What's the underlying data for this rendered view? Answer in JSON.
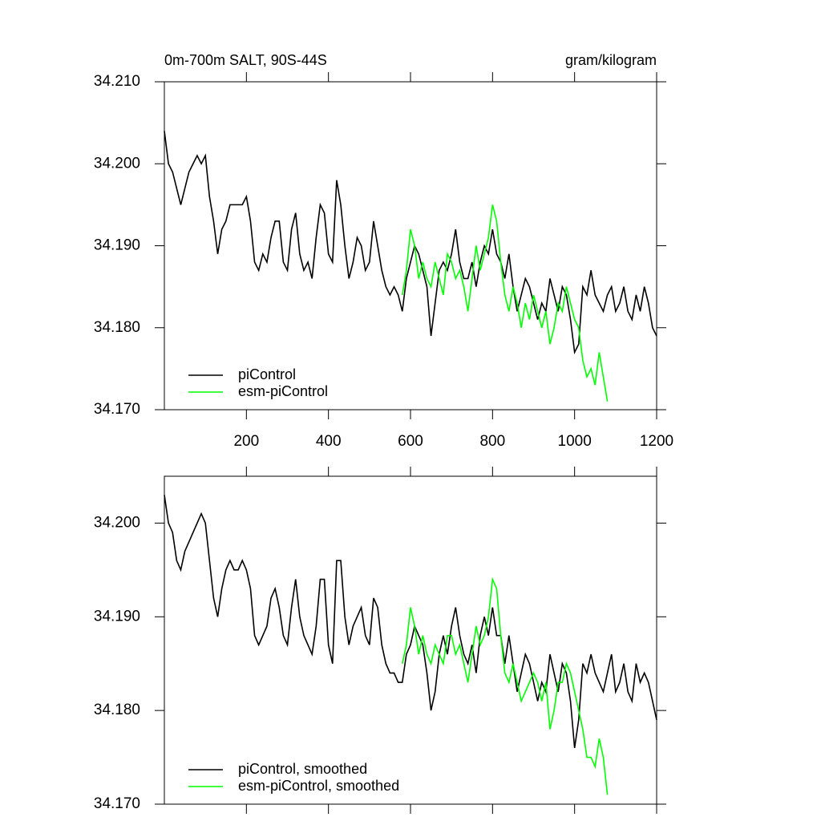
{
  "chart_data": [
    {
      "type": "line",
      "title": "0m-700m SALT, 90S-44S",
      "units": "gram/kilogram",
      "xlim": [
        0,
        1200
      ],
      "xticks": [
        200,
        400,
        600,
        800,
        1000,
        1200
      ],
      "ylim": [
        34.17,
        34.21
      ],
      "yticks": [
        {
          "value": 34.17,
          "label": "34.170"
        },
        {
          "value": 34.18,
          "label": "34.180"
        },
        {
          "value": 34.19,
          "label": "34.190"
        },
        {
          "value": 34.2,
          "label": "34.200"
        },
        {
          "value": 34.21,
          "label": "34.210"
        }
      ],
      "legend": "lower left",
      "series": [
        {
          "name": "piControl",
          "color": "#000000",
          "x": [
            0,
            10,
            20,
            30,
            40,
            50,
            60,
            70,
            80,
            90,
            100,
            110,
            120,
            130,
            140,
            150,
            160,
            170,
            180,
            190,
            200,
            210,
            220,
            230,
            240,
            250,
            260,
            270,
            280,
            290,
            300,
            310,
            320,
            330,
            340,
            350,
            360,
            370,
            380,
            390,
            400,
            410,
            420,
            430,
            440,
            450,
            460,
            470,
            480,
            490,
            500,
            510,
            520,
            530,
            540,
            550,
            560,
            570,
            580,
            590,
            600,
            610,
            620,
            630,
            640,
            650,
            660,
            670,
            680,
            690,
            700,
            710,
            720,
            730,
            740,
            750,
            760,
            770,
            780,
            790,
            800,
            810,
            820,
            830,
            840,
            850,
            860,
            870,
            880,
            890,
            900,
            910,
            920,
            930,
            940,
            950,
            960,
            970,
            980,
            990,
            1000,
            1010,
            1020,
            1030,
            1040,
            1050,
            1060,
            1070,
            1080,
            1090,
            1100,
            1110,
            1120,
            1130,
            1140,
            1150,
            1160,
            1170,
            1180,
            1190,
            1200
          ],
          "values": [
            34.204,
            34.2,
            34.199,
            34.197,
            34.195,
            34.197,
            34.199,
            34.2,
            34.201,
            34.2,
            34.201,
            34.196,
            34.193,
            34.189,
            34.192,
            34.193,
            34.195,
            34.195,
            34.195,
            34.195,
            34.196,
            34.193,
            34.188,
            34.187,
            34.189,
            34.188,
            34.191,
            34.193,
            34.193,
            34.188,
            34.187,
            34.192,
            34.194,
            34.189,
            34.187,
            34.188,
            34.186,
            34.191,
            34.195,
            34.194,
            34.189,
            34.188,
            34.198,
            34.195,
            34.19,
            34.186,
            34.188,
            34.191,
            34.19,
            34.187,
            34.188,
            34.193,
            34.19,
            34.187,
            34.185,
            34.184,
            34.185,
            34.184,
            34.182,
            34.186,
            34.188,
            34.19,
            34.189,
            34.187,
            34.185,
            34.179,
            34.183,
            34.187,
            34.188,
            34.187,
            34.189,
            34.192,
            34.188,
            34.186,
            34.186,
            34.188,
            34.185,
            34.188,
            34.19,
            34.189,
            34.192,
            34.189,
            34.188,
            34.186,
            34.189,
            34.185,
            34.182,
            34.184,
            34.186,
            34.185,
            34.183,
            34.181,
            34.183,
            34.182,
            34.186,
            34.184,
            34.182,
            34.185,
            34.184,
            34.181,
            34.177,
            34.178,
            34.185,
            34.184,
            34.187,
            34.184,
            34.183,
            34.182,
            34.184,
            34.185,
            34.182,
            34.183,
            34.185,
            34.182,
            34.181,
            34.184,
            34.182,
            34.185,
            34.183,
            34.18,
            34.179
          ]
        },
        {
          "name": "esm-piControl",
          "color": "#00ff00",
          "x": [
            580,
            590,
            600,
            610,
            620,
            630,
            640,
            650,
            660,
            670,
            680,
            690,
            700,
            710,
            720,
            730,
            740,
            750,
            760,
            770,
            780,
            790,
            800,
            810,
            820,
            830,
            840,
            850,
            860,
            870,
            880,
            890,
            900,
            910,
            920,
            930,
            940,
            950,
            960,
            970,
            980,
            990,
            1000,
            1010,
            1020,
            1030,
            1040,
            1050,
            1060,
            1070,
            1080
          ],
          "values": [
            34.184,
            34.187,
            34.192,
            34.19,
            34.186,
            34.188,
            34.186,
            34.185,
            34.188,
            34.186,
            34.184,
            34.189,
            34.188,
            34.186,
            34.187,
            34.185,
            34.182,
            34.186,
            34.19,
            34.187,
            34.189,
            34.191,
            34.195,
            34.193,
            34.188,
            34.184,
            34.182,
            34.185,
            34.183,
            34.18,
            34.183,
            34.181,
            34.184,
            34.182,
            34.18,
            34.182,
            34.178,
            34.18,
            34.183,
            34.182,
            34.185,
            34.183,
            34.181,
            34.18,
            34.176,
            34.174,
            34.175,
            34.173,
            34.177,
            34.174,
            34.171
          ]
        }
      ]
    },
    {
      "type": "line",
      "xlim": [
        0,
        1200
      ],
      "xticks": [
        200,
        400,
        600,
        800,
        1000,
        1200
      ],
      "ylim": [
        34.17,
        34.205
      ],
      "yticks": [
        {
          "value": 34.17,
          "label": "34.170"
        },
        {
          "value": 34.18,
          "label": "34.180"
        },
        {
          "value": 34.19,
          "label": "34.190"
        },
        {
          "value": 34.2,
          "label": "34.200"
        }
      ],
      "legend": "lower left",
      "series": [
        {
          "name": "piControl, smoothed",
          "color": "#000000",
          "x": [
            0,
            10,
            20,
            30,
            40,
            50,
            60,
            70,
            80,
            90,
            100,
            110,
            120,
            130,
            140,
            150,
            160,
            170,
            180,
            190,
            200,
            210,
            220,
            230,
            240,
            250,
            260,
            270,
            280,
            290,
            300,
            310,
            320,
            330,
            340,
            350,
            360,
            370,
            380,
            390,
            400,
            410,
            420,
            430,
            440,
            450,
            460,
            470,
            480,
            490,
            500,
            510,
            520,
            530,
            540,
            550,
            560,
            570,
            580,
            590,
            600,
            610,
            620,
            630,
            640,
            650,
            660,
            670,
            680,
            690,
            700,
            710,
            720,
            730,
            740,
            750,
            760,
            770,
            780,
            790,
            800,
            810,
            820,
            830,
            840,
            850,
            860,
            870,
            880,
            890,
            900,
            910,
            920,
            930,
            940,
            950,
            960,
            970,
            980,
            990,
            1000,
            1010,
            1020,
            1030,
            1040,
            1050,
            1060,
            1070,
            1080,
            1090,
            1100,
            1110,
            1120,
            1130,
            1140,
            1150,
            1160,
            1170,
            1180,
            1190,
            1200
          ],
          "values": [
            34.203,
            34.2,
            34.199,
            34.196,
            34.195,
            34.197,
            34.198,
            34.199,
            34.2,
            34.201,
            34.2,
            34.196,
            34.192,
            34.19,
            34.193,
            34.195,
            34.196,
            34.195,
            34.195,
            34.196,
            34.195,
            34.193,
            34.188,
            34.187,
            34.188,
            34.189,
            34.192,
            34.193,
            34.191,
            34.188,
            34.187,
            34.191,
            34.194,
            34.19,
            34.188,
            34.187,
            34.186,
            34.189,
            34.194,
            34.194,
            34.187,
            34.185,
            34.196,
            34.196,
            34.19,
            34.187,
            34.189,
            34.19,
            34.191,
            34.188,
            34.187,
            34.192,
            34.191,
            34.187,
            34.185,
            34.184,
            34.184,
            34.183,
            34.183,
            34.186,
            34.187,
            34.189,
            34.188,
            34.187,
            34.184,
            34.18,
            34.182,
            34.186,
            34.188,
            34.186,
            34.189,
            34.191,
            34.188,
            34.186,
            34.185,
            34.187,
            34.184,
            34.188,
            34.19,
            34.188,
            34.191,
            34.188,
            34.188,
            34.185,
            34.188,
            34.185,
            34.182,
            34.184,
            34.186,
            34.185,
            34.183,
            34.181,
            34.183,
            34.182,
            34.186,
            34.184,
            34.182,
            34.185,
            34.184,
            34.181,
            34.176,
            34.179,
            34.185,
            34.184,
            34.186,
            34.184,
            34.183,
            34.182,
            34.184,
            34.186,
            34.182,
            34.183,
            34.185,
            34.182,
            34.181,
            34.185,
            34.183,
            34.184,
            34.183,
            34.181,
            34.179
          ]
        },
        {
          "name": "esm-piControl, smoothed",
          "color": "#00ff00",
          "x": [
            580,
            590,
            600,
            610,
            620,
            630,
            640,
            650,
            660,
            670,
            680,
            690,
            700,
            710,
            720,
            730,
            740,
            750,
            760,
            770,
            780,
            790,
            800,
            810,
            820,
            830,
            840,
            850,
            860,
            870,
            880,
            890,
            900,
            910,
            920,
            930,
            940,
            950,
            960,
            970,
            980,
            990,
            1000,
            1010,
            1020,
            1030,
            1040,
            1050,
            1060,
            1070,
            1080
          ],
          "values": [
            34.185,
            34.187,
            34.191,
            34.189,
            34.186,
            34.188,
            34.186,
            34.185,
            34.187,
            34.186,
            34.185,
            34.188,
            34.188,
            34.186,
            34.187,
            34.185,
            34.183,
            34.186,
            34.189,
            34.187,
            34.188,
            34.19,
            34.194,
            34.193,
            34.188,
            34.184,
            34.183,
            34.185,
            34.183,
            34.181,
            34.182,
            34.183,
            34.184,
            34.183,
            34.181,
            34.183,
            34.178,
            34.18,
            34.183,
            34.183,
            34.185,
            34.184,
            34.182,
            34.18,
            34.178,
            34.175,
            34.175,
            34.174,
            34.177,
            34.175,
            34.171
          ]
        }
      ]
    }
  ]
}
